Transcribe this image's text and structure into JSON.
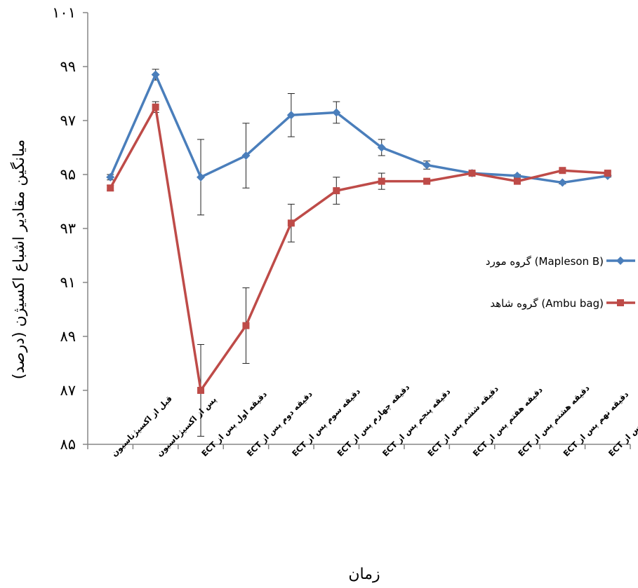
{
  "chart_data": {
    "type": "line",
    "title": "",
    "xlabel": "زمان",
    "ylabel": "میانگین مقادیر اشباع اکسیژن (درصد)",
    "ylim": [
      85,
      101
    ],
    "yticks": [
      "۸۵",
      "۸۷",
      "۸۹",
      "۹۱",
      "۹۳",
      "۹۵",
      "۹۷",
      "۹۹",
      "۱۰۱"
    ],
    "categories": [
      "قبل از اکسیژناسیون",
      "پس از اکسیژناسیون",
      "دقیقه اول پس از ECT",
      "دقیقه دوم پس از ECT",
      "دقیقه سوم پس از ECT",
      "دقیقه چهارم پس از ECT",
      "دقیقه پنجم پس از ECT",
      "دقیقه ششم پس از ECT",
      "دقیقه هفتم پس از ECT",
      "دقیقه هشتم پس از ECT",
      "دقیقه نهم پس از ECT",
      "دقیقه دهم پس از ECT"
    ],
    "series": [
      {
        "name": "گروه مورد (Mapleson B)",
        "color": "#4a7ebb",
        "marker": "diamond",
        "values": [
          94.9,
          98.7,
          94.9,
          95.7,
          97.2,
          97.3,
          96.0,
          95.35,
          95.05,
          94.95,
          94.7,
          94.95
        ],
        "errors": [
          0.1,
          0.2,
          1.4,
          1.2,
          0.8,
          0.4,
          0.3,
          0.15,
          0.05,
          0.05,
          0.05,
          0.05
        ]
      },
      {
        "name": "گروه شاهد (Ambu bag)",
        "color": "#be4b48",
        "marker": "square",
        "values": [
          94.5,
          97.5,
          87.0,
          89.4,
          93.2,
          94.4,
          94.75,
          94.75,
          95.05,
          94.75,
          95.15,
          95.05
        ],
        "errors": [
          0.1,
          0.2,
          1.7,
          1.4,
          0.7,
          0.5,
          0.3,
          0.05,
          0.05,
          0.05,
          0.05,
          0.05
        ]
      }
    ],
    "grid": false,
    "legend_position": "right"
  }
}
